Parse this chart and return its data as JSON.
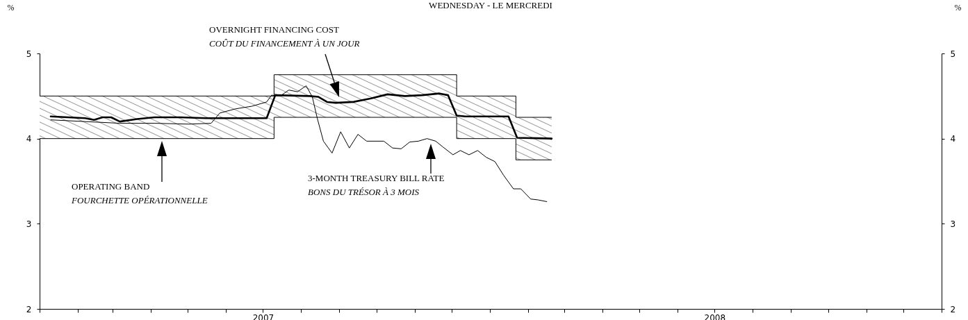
{
  "chart_data": {
    "type": "line",
    "title": "WEDNESDAY - LE MERCREDI",
    "ylabel": "%",
    "y2label": "%",
    "xlim": [
      "2007-01-01",
      "2009-01-01"
    ],
    "xticks": [
      {
        "value": "2007-01-01",
        "label": null
      },
      {
        "value": "2007-02-01",
        "label": null
      },
      {
        "value": "2007-03-01",
        "label": null
      },
      {
        "value": "2007-04-01",
        "label": null
      },
      {
        "value": "2007-05-01",
        "label": null
      },
      {
        "value": "2007-06-01",
        "label": null
      },
      {
        "value": "2007-07-01",
        "label": "2007"
      },
      {
        "value": "2007-08-01",
        "label": null
      },
      {
        "value": "2007-09-01",
        "label": null
      },
      {
        "value": "2007-10-01",
        "label": null
      },
      {
        "value": "2007-11-01",
        "label": null
      },
      {
        "value": "2007-12-01",
        "label": null
      },
      {
        "value": "2008-01-01",
        "label": null
      },
      {
        "value": "2008-02-01",
        "label": null
      },
      {
        "value": "2008-03-01",
        "label": null
      },
      {
        "value": "2008-04-01",
        "label": null
      },
      {
        "value": "2008-05-01",
        "label": null
      },
      {
        "value": "2008-06-01",
        "label": null
      },
      {
        "value": "2008-07-01",
        "label": "2008"
      },
      {
        "value": "2008-08-01",
        "label": null
      },
      {
        "value": "2008-09-01",
        "label": null
      },
      {
        "value": "2008-10-01",
        "label": null
      },
      {
        "value": "2008-11-01",
        "label": null
      },
      {
        "value": "2008-12-01",
        "label": null
      },
      {
        "value": "2009-01-01",
        "label": null
      }
    ],
    "ylim": [
      2,
      5
    ],
    "yticks": [
      2,
      3,
      4,
      5
    ],
    "y2lim": [
      2,
      5
    ],
    "y2ticks": [
      2,
      3,
      4,
      5
    ],
    "series": [
      {
        "type": "step",
        "color": "#000000",
        "x": [
          "2007-01-01",
          "2007-07-10",
          "2007-12-05",
          "2008-01-22",
          "2008-02-20"
        ],
        "values": [
          4.5,
          4.75,
          4.5,
          4.25,
          4.25
        ]
      },
      {
        "type": "step",
        "color": "#000000",
        "x": [
          "2007-01-01",
          "2007-07-10",
          "2007-12-05",
          "2008-01-22",
          "2008-02-20"
        ],
        "values": [
          4,
          4.25,
          4,
          3.75,
          3.75
        ]
      },
      {
        "type": "line",
        "color": "#000000",
        "x": [
          "2007-01-10",
          "2007-01-24",
          "2007-02-07",
          "2007-02-14",
          "2007-02-21",
          "2007-02-28",
          "2007-03-07",
          "2007-03-21",
          "2007-04-04",
          "2007-04-25",
          "2007-05-16",
          "2007-06-06",
          "2007-06-27",
          "2007-07-04",
          "2007-07-11",
          "2007-08-08",
          "2007-08-15",
          "2007-08-22",
          "2007-08-29",
          "2007-09-12",
          "2007-09-26",
          "2007-10-10",
          "2007-10-24",
          "2007-11-07",
          "2007-11-21",
          "2007-11-28",
          "2007-12-05",
          "2007-12-12",
          "2008-01-02",
          "2008-01-16",
          "2008-01-23",
          "2008-02-20"
        ],
        "values": [
          4.26,
          4.25,
          4.24,
          4.22,
          4.25,
          4.25,
          4.2,
          4.23,
          4.25,
          4.25,
          4.24,
          4.24,
          4.24,
          4.24,
          4.51,
          4.5,
          4.49,
          4.43,
          4.42,
          4.43,
          4.47,
          4.52,
          4.5,
          4.51,
          4.53,
          4.51,
          4.27,
          4.26,
          4.26,
          4.26,
          4.01,
          4
        ]
      },
      {
        "type": "line",
        "color": "#000000",
        "x": [
          "2007-01-10",
          "2007-03-07",
          "2007-04-04",
          "2007-05-02",
          "2007-05-20",
          "2007-05-27",
          "2007-06-09",
          "2007-06-22",
          "2007-07-04",
          "2007-07-08",
          "2007-07-15",
          "2007-07-22",
          "2007-07-29",
          "2007-08-05",
          "2007-08-10",
          "2007-08-14",
          "2007-08-19",
          "2007-08-26",
          "2007-09-02",
          "2007-09-09",
          "2007-09-16",
          "2007-09-23",
          "2007-09-30",
          "2007-10-07",
          "2007-10-14",
          "2007-10-21",
          "2007-10-28",
          "2007-11-04",
          "2007-11-11",
          "2007-11-18",
          "2007-11-24",
          "2007-12-02",
          "2007-12-08",
          "2007-12-15",
          "2007-12-22",
          "2007-12-29",
          "2008-01-05",
          "2008-01-12",
          "2008-01-20",
          "2008-01-26",
          "2008-02-03",
          "2008-02-09",
          "2008-02-16"
        ],
        "values": [
          4.22,
          4.18,
          4.18,
          4.17,
          4.18,
          4.3,
          4.35,
          4.38,
          4.43,
          4.51,
          4.5,
          4.57,
          4.55,
          4.62,
          4.49,
          4.24,
          3.97,
          3.83,
          4.08,
          3.89,
          4.05,
          3.97,
          3.97,
          3.97,
          3.89,
          3.88,
          3.96,
          3.97,
          4,
          3.97,
          3.9,
          3.81,
          3.86,
          3.81,
          3.86,
          3.78,
          3.73,
          3.57,
          3.41,
          3.41,
          3.29,
          3.28,
          3.26
        ]
      }
    ],
    "annotations": [
      "OVERNIGHT FINANCING COST",
      "COÛT DU FINANCEMENT À UN JOUR",
      "OPERATING BAND",
      "FOURCHETTE OPÉRATIONNELLE",
      "3-MONTH TREASURY BILL RATE",
      "BONS DU TRÉSOR À 3 MOIS"
    ]
  }
}
